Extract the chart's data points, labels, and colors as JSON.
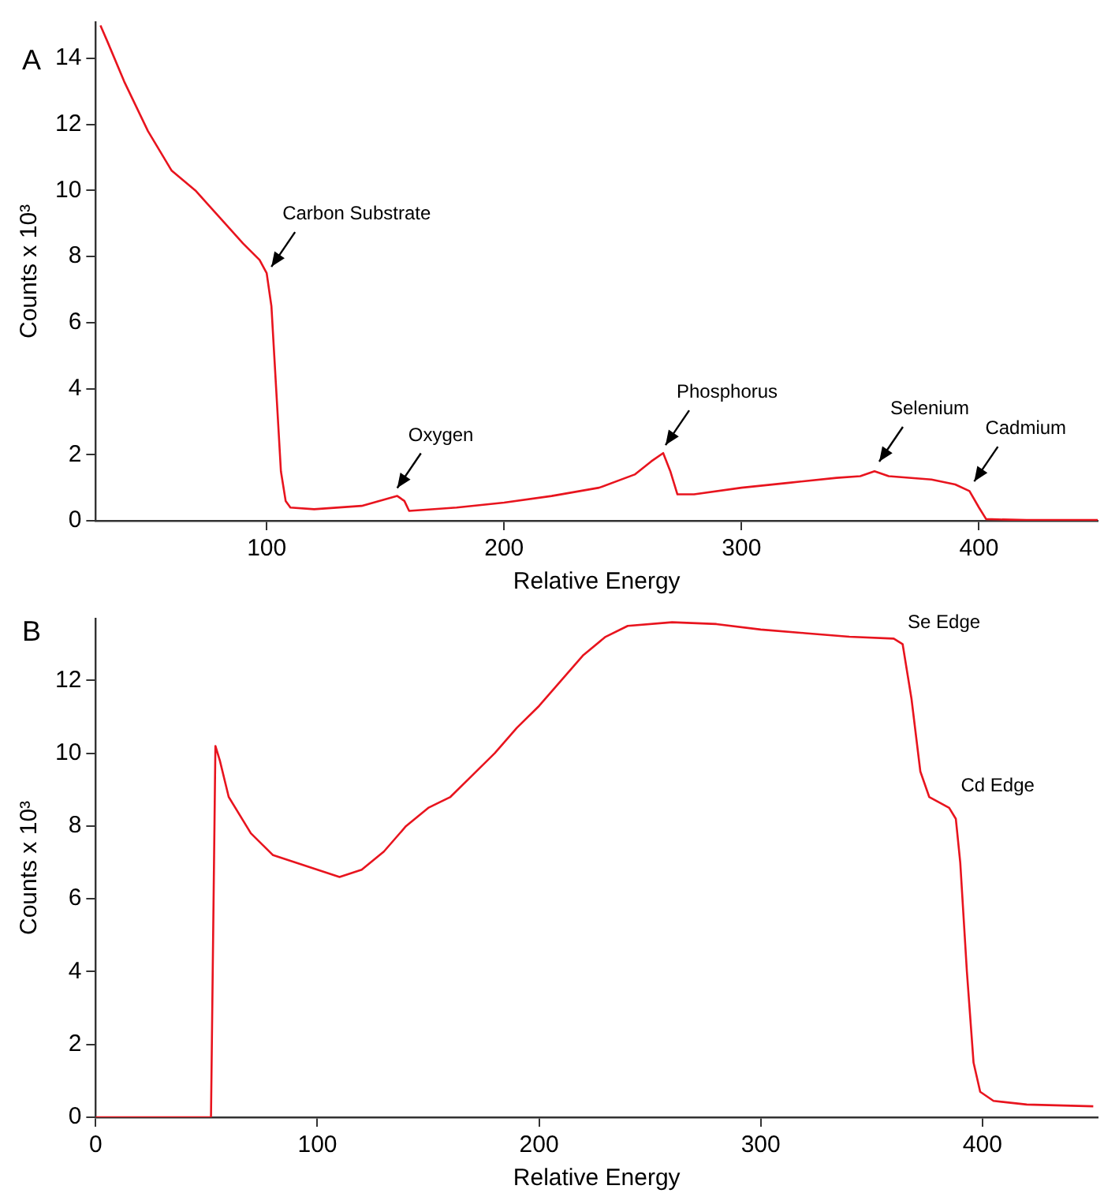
{
  "chart_data": [
    {
      "type": "line",
      "title": "A",
      "xlabel": "Relative Energy",
      "ylabel": "Counts x 10³",
      "xlim": [
        28,
        450
      ],
      "xticks": [
        100,
        200,
        300,
        400
      ],
      "ylim": [
        0,
        15.1
      ],
      "yticks": [
        0,
        2,
        4,
        6,
        8,
        10,
        12,
        14
      ],
      "grid": false,
      "marker": "none",
      "line_style": "solid",
      "x": [
        30,
        33,
        40,
        50,
        60,
        70,
        80,
        90,
        97,
        100,
        102,
        104,
        106,
        108,
        110,
        120,
        140,
        150,
        155,
        158,
        160,
        180,
        200,
        220,
        240,
        255,
        262,
        267,
        270,
        273,
        280,
        300,
        320,
        340,
        350,
        356,
        362,
        380,
        390,
        396,
        400,
        403,
        420,
        450
      ],
      "series": [
        {
          "color": "#e8141e",
          "values": [
            15,
            14.5,
            13.3,
            11.8,
            10.6,
            10,
            9.2,
            8.4,
            7.9,
            7.5,
            6.5,
            4,
            1.5,
            0.6,
            0.4,
            0.35,
            0.45,
            0.65,
            0.75,
            0.6,
            0.3,
            0.4,
            0.55,
            0.75,
            1.0,
            1.4,
            1.8,
            2.05,
            1.5,
            0.8,
            0.8,
            1.0,
            1.15,
            1.3,
            1.35,
            1.5,
            1.35,
            1.25,
            1.1,
            0.9,
            0.4,
            0.05,
            0.02,
            0.02
          ]
        }
      ],
      "annotations": [
        {
          "text": "Carbon Substrate",
          "x": 100,
          "y": 7.5
        },
        {
          "text": "Oxygen",
          "x": 153,
          "y": 0.8
        },
        {
          "text": "Phosphorus",
          "x": 266,
          "y": 2.1
        },
        {
          "text": "Selenium",
          "x": 356,
          "y": 1.6
        },
        {
          "text": "Cadmium",
          "x": 396,
          "y": 1.0
        }
      ]
    },
    {
      "type": "line",
      "title": "B",
      "xlabel": "Relative Energy",
      "ylabel": "Counts x 10³",
      "xlim": [
        0,
        452
      ],
      "xticks": [
        0,
        100,
        200,
        300,
        400
      ],
      "ylim": [
        0,
        13.7
      ],
      "yticks": [
        0,
        2,
        4,
        6,
        8,
        10,
        12
      ],
      "grid": false,
      "marker": "none",
      "line_style": "solid",
      "x": [
        0,
        52,
        54,
        56,
        60,
        70,
        80,
        90,
        100,
        110,
        120,
        130,
        140,
        150,
        160,
        170,
        180,
        190,
        200,
        210,
        220,
        230,
        240,
        260,
        280,
        300,
        320,
        340,
        360,
        364,
        368,
        372,
        376,
        385,
        388,
        390,
        393,
        396,
        399,
        405,
        420,
        450
      ],
      "series": [
        {
          "color": "#e8141e",
          "values": [
            0,
            0,
            10.2,
            9.8,
            8.8,
            7.8,
            7.2,
            7.0,
            6.8,
            6.6,
            6.8,
            7.3,
            8.0,
            8.5,
            8.8,
            9.4,
            10.0,
            10.7,
            11.3,
            12.0,
            12.7,
            13.2,
            13.5,
            13.6,
            13.55,
            13.4,
            13.3,
            13.2,
            13.15,
            13.0,
            11.5,
            9.5,
            8.8,
            8.5,
            8.2,
            7,
            4,
            1.5,
            0.7,
            0.45,
            0.35,
            0.3
          ]
        }
      ],
      "annotations": [
        {
          "text": "Se Edge",
          "x": 362,
          "y": 13.1
        },
        {
          "text": "Cd Edge",
          "x": 386,
          "y": 8.6
        }
      ]
    }
  ]
}
